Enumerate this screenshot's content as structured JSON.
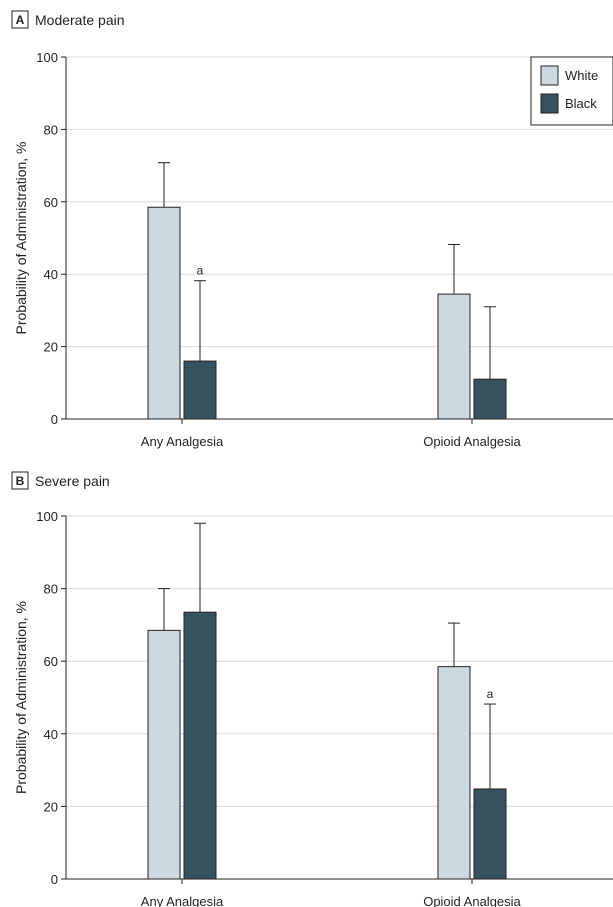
{
  "chart_data": [
    {
      "type": "bar",
      "panel_letter": "A",
      "title": "Moderate pain",
      "ylabel": "Probability of Administration, %",
      "xlabel": "",
      "ylim": [
        0,
        100
      ],
      "yticks": [
        0,
        20,
        40,
        60,
        80,
        100
      ],
      "grid": true,
      "legend": "top-right",
      "categories": [
        "Any Analgesia",
        "Opioid Analgesia"
      ],
      "series": [
        {
          "name": "White",
          "color": "#cdd9e0",
          "values": [
            58.5,
            34.5
          ],
          "error_upper": [
            70.8,
            48.2
          ]
        },
        {
          "name": "Black",
          "color": "#34535f",
          "values": [
            16.0,
            11.0
          ],
          "error_upper": [
            38.2,
            31.0
          ]
        }
      ],
      "annotations": [
        {
          "text": "a",
          "category": "Any Analgesia",
          "series": "Black"
        }
      ]
    },
    {
      "type": "bar",
      "panel_letter": "B",
      "title": "Severe pain",
      "ylabel": "Probability of Administration, %",
      "xlabel": "",
      "ylim": [
        0,
        100
      ],
      "yticks": [
        0,
        20,
        40,
        60,
        80,
        100
      ],
      "grid": true,
      "categories": [
        "Any Analgesia",
        "Opioid Analgesia"
      ],
      "series": [
        {
          "name": "White",
          "color": "#cdd9e0",
          "values": [
            68.5,
            58.5
          ],
          "error_upper": [
            80.0,
            70.5
          ]
        },
        {
          "name": "Black",
          "color": "#34535f",
          "values": [
            73.5,
            24.8
          ],
          "error_upper": [
            98.0,
            48.2
          ]
        }
      ],
      "annotations": [
        {
          "text": "a",
          "category": "Opioid Analgesia",
          "series": "Black"
        }
      ]
    }
  ]
}
